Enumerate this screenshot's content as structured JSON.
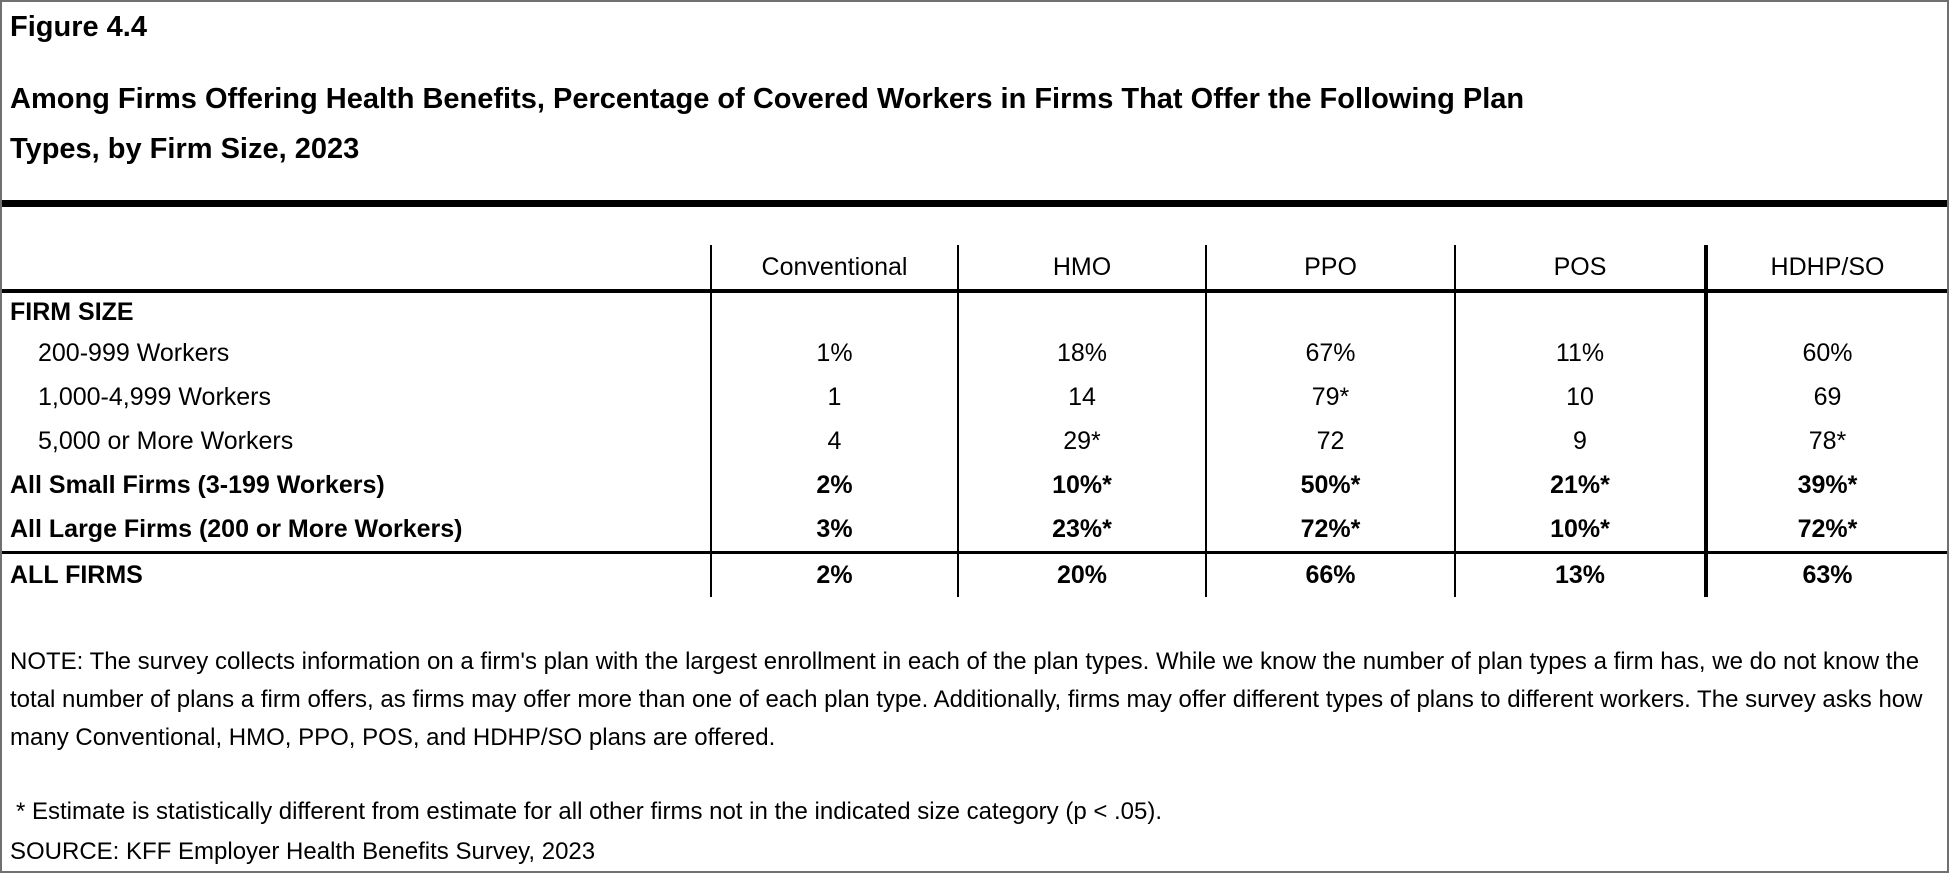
{
  "figure": {
    "label": "Figure 4.4",
    "title": "Among Firms Offering Health Benefits, Percentage of Covered Workers in Firms That Offer the Following Plan Types, by Firm Size, 2023"
  },
  "table": {
    "row_header_label": "FIRM SIZE",
    "columns": [
      "Conventional",
      "HMO",
      "PPO",
      "POS",
      "HDHP/SO"
    ],
    "rows": [
      {
        "label": "FIRM SIZE",
        "values": [
          "",
          "",
          "",
          "",
          ""
        ]
      },
      {
        "label": "200-999 Workers",
        "values": [
          "1%",
          "18%",
          "67%",
          "11%",
          "60%"
        ]
      },
      {
        "label": "1,000-4,999 Workers",
        "values": [
          "1",
          "14",
          "79*",
          "10",
          "69"
        ]
      },
      {
        "label": "5,000 or More Workers",
        "values": [
          "4",
          "29*",
          "72",
          "9",
          "78*"
        ]
      },
      {
        "label": "All Small Firms (3-199 Workers)",
        "values": [
          "2%",
          "10%*",
          "50%*",
          "21%*",
          "39%*"
        ]
      },
      {
        "label": "All Large Firms (200 or More Workers)",
        "values": [
          "3%",
          "23%*",
          "72%*",
          "10%*",
          "72%*"
        ]
      },
      {
        "label": "ALL FIRMS",
        "values": [
          "2%",
          "20%",
          "66%",
          "13%",
          "63%"
        ]
      }
    ]
  },
  "chart_data": {
    "type": "table",
    "title": "Among Firms Offering Health Benefits, Percentage of Covered Workers in Firms That Offer the Following Plan Types, by Firm Size, 2023",
    "categories": [
      "Conventional",
      "HMO",
      "PPO",
      "POS",
      "HDHP/SO"
    ],
    "series": [
      {
        "name": "200-999 Workers",
        "values": [
          "1%",
          "18%",
          "67%",
          "11%",
          "60%"
        ]
      },
      {
        "name": "1,000-4,999 Workers",
        "values": [
          "1",
          "14",
          "79*",
          "10",
          "69"
        ]
      },
      {
        "name": "5,000 or More Workers",
        "values": [
          "4",
          "29*",
          "72",
          "9",
          "78*"
        ]
      },
      {
        "name": "All Small Firms (3-199 Workers)",
        "values": [
          "2%",
          "10%*",
          "50%*",
          "21%*",
          "39%*"
        ]
      },
      {
        "name": "All Large Firms (200 or More Workers)",
        "values": [
          "3%",
          "23%*",
          "72%*",
          "10%*",
          "72%*"
        ]
      },
      {
        "name": "ALL FIRMS",
        "values": [
          "2%",
          "20%",
          "66%",
          "13%",
          "63%"
        ]
      }
    ]
  },
  "notes": {
    "note": "NOTE: The survey collects information on a firm's plan with the largest enrollment in each of the plan types. While we know the number of plan types a firm has, we do not know the total number of plans a firm offers, as firms may offer more than one of each plan type. Additionally, firms may offer different types of plans to different workers. The survey asks how many Conventional, HMO, PPO, POS, and HDHP/SO plans are offered.",
    "asterisk": "* Estimate is statistically different from estimate for all other firms not in the indicated size category (p < .05).",
    "source": "SOURCE: KFF Employer Health Benefits Survey, 2023"
  },
  "colors": {
    "text": "#000000",
    "rule": "#000000",
    "outer_border": "#6e7072",
    "background": "#ffffff"
  }
}
